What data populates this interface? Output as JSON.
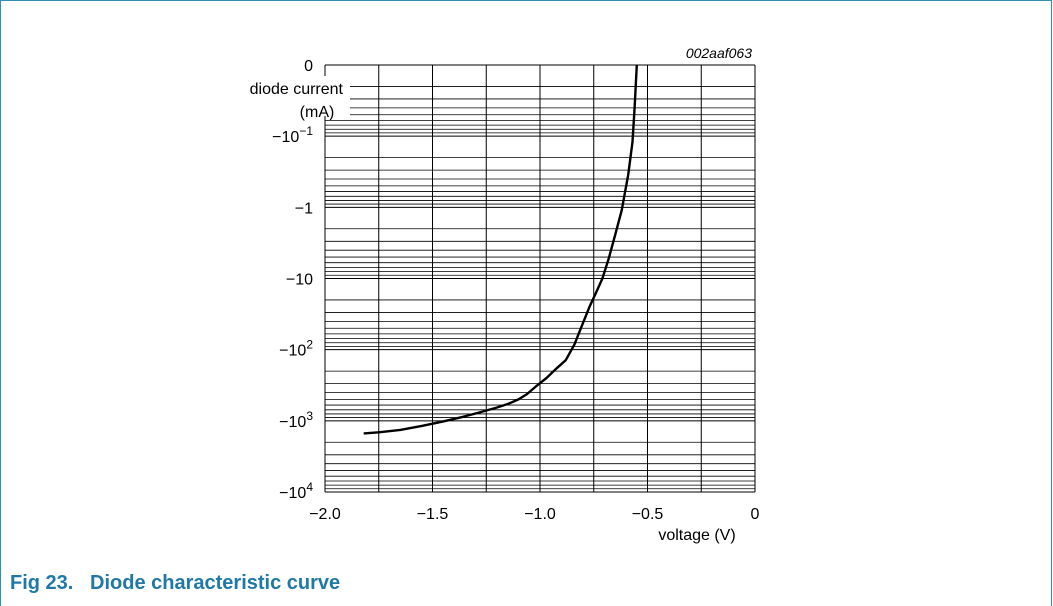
{
  "figure": {
    "caption": "Fig 23.   Diode characteristic curve",
    "id_text": "002aaf063"
  },
  "colors": {
    "frame": "#2f8fb0",
    "caption": "#1f79a7",
    "grid": "#000000",
    "curve": "#000000"
  },
  "chart_data": {
    "type": "line",
    "title": "",
    "xlabel": "voltage (V)",
    "ylabel_lines": [
      "diode current",
      "(mA)"
    ],
    "xlim": [
      -2.0,
      0
    ],
    "x_ticks": [
      -2.0,
      -1.5,
      -1.0,
      -0.5,
      0
    ],
    "x_tick_labels": [
      "−2.0",
      "−1.5",
      "−1.0",
      "−0.5",
      "0"
    ],
    "y_scale": "log (negative magnitudes)",
    "y_decades": [
      0,
      -0.1,
      -1,
      -10,
      -100,
      -1000,
      -10000
    ],
    "y_tick_labels": [
      {
        "base": "0",
        "sup": ""
      },
      {
        "base": "−10",
        "sup": "−1"
      },
      {
        "base": "−1",
        "sup": ""
      },
      {
        "base": "−10",
        "sup": ""
      },
      {
        "base": "−10",
        "sup": "2"
      },
      {
        "base": "−10",
        "sup": "3"
      },
      {
        "base": "−10",
        "sup": "4"
      }
    ],
    "grid": true,
    "series": [
      {
        "x": [
          -0.55,
          -0.56,
          -0.57,
          -0.59,
          -0.62,
          -0.65,
          -0.68,
          -0.71,
          -0.74,
          -0.77,
          -0.8,
          -0.84,
          -0.88,
          -0.92,
          -0.97,
          -1.02,
          -1.06,
          -1.1,
          -1.15,
          -1.2,
          -1.28,
          -1.36,
          -1.45,
          -1.55,
          -1.65,
          -1.75,
          -1.82
        ],
        "y": [
          -0.01,
          -0.04,
          -0.12,
          -0.35,
          -1.1,
          -2.4,
          -5.2,
          -10,
          -16,
          -25,
          -42,
          -85,
          -140,
          -180,
          -250,
          -330,
          -420,
          -500,
          -580,
          -650,
          -760,
          -880,
          -1020,
          -1180,
          -1340,
          -1450,
          -1500
        ]
      }
    ]
  }
}
